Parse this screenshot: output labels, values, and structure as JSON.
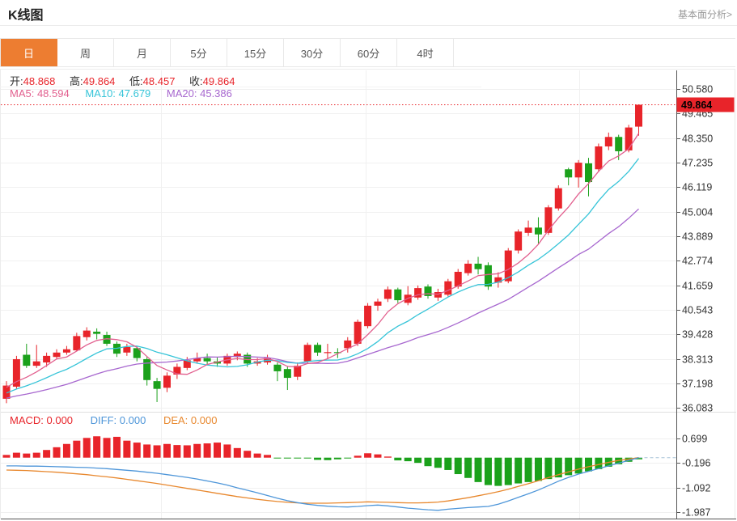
{
  "header": {
    "title": "K线图",
    "link": "基本面分析>"
  },
  "tabs": {
    "items": [
      {
        "label": "日",
        "active": true
      },
      {
        "label": "周",
        "active": false
      },
      {
        "label": "月",
        "active": false
      },
      {
        "label": "5分",
        "active": false
      },
      {
        "label": "15分",
        "active": false
      },
      {
        "label": "30分",
        "active": false
      },
      {
        "label": "60分",
        "active": false
      },
      {
        "label": "4时",
        "active": false
      }
    ]
  },
  "ohlc_bar": {
    "items": [
      {
        "label": "开:",
        "value": "48.868"
      },
      {
        "label": "高:",
        "value": "49.864"
      },
      {
        "label": "低:",
        "value": "48.457"
      },
      {
        "label": "收:",
        "value": "49.864"
      }
    ]
  },
  "ma_bar": {
    "items": [
      {
        "text": "MA5: 48.594",
        "key": "ma5"
      },
      {
        "text": "MA10: 47.679",
        "key": "ma10"
      },
      {
        "text": "MA20: 45.386",
        "key": "ma20"
      }
    ]
  },
  "macd_bar": {
    "items": [
      {
        "text": "MACD: 0.000",
        "key": "macd"
      },
      {
        "text": "DIFF: 0.000",
        "key": "diff"
      },
      {
        "text": "DEA: 0.000",
        "key": "dea"
      }
    ]
  },
  "price_tag": "49.864",
  "colors": {
    "up": "#e8242a",
    "down": "#1ba11b",
    "accent": "#ed7d31",
    "ma5": "#e25f8e",
    "ma10": "#35c4d8",
    "ma20": "#a767cf",
    "diff": "#4e96d9",
    "dea": "#e8882e",
    "grid": "#f0f0f0",
    "axis": "#555555",
    "label_text": "#333333",
    "dashed_zero": "#a8c4d8"
  },
  "chart_data": [
    {
      "type": "candlestick",
      "title": "日K with MA5/MA10/MA20",
      "legend": [
        "MA5",
        "MA10",
        "MA20"
      ],
      "current_price": 49.864,
      "y_axis_labels": [
        "50.580",
        "49.465",
        "48.350",
        "47.235",
        "46.119",
        "45.004",
        "43.889",
        "42.774",
        "41.659",
        "40.543",
        "39.428",
        "38.313",
        "37.198",
        "36.083"
      ],
      "y_axis_values": [
        50.58,
        49.465,
        48.35,
        47.235,
        46.119,
        45.004,
        43.889,
        42.774,
        41.659,
        40.543,
        39.428,
        38.313,
        37.198,
        36.083
      ],
      "ylim": [
        35.6,
        51.1
      ],
      "grid": true,
      "ma_seed_closes": [
        36.3,
        36.3,
        36.3,
        36.3,
        36.3,
        36.3,
        36.3,
        36.3,
        36.3,
        36.3,
        36.5,
        36.5,
        36.5,
        36.5,
        36.5,
        37.0,
        37.0,
        37.0,
        37.0
      ],
      "candles_ohlc": [
        [
          36.5,
          37.3,
          36.3,
          37.1
        ],
        [
          37.05,
          38.45,
          36.95,
          38.3
        ],
        [
          38.5,
          39.0,
          37.9,
          38.0
        ],
        [
          38.0,
          38.95,
          37.9,
          38.2
        ],
        [
          38.15,
          38.6,
          37.95,
          38.45
        ],
        [
          38.4,
          38.75,
          38.3,
          38.6
        ],
        [
          38.6,
          38.9,
          38.5,
          38.75
        ],
        [
          38.7,
          39.5,
          38.65,
          39.35
        ],
        [
          39.3,
          39.75,
          39.15,
          39.6
        ],
        [
          39.55,
          39.7,
          39.2,
          39.45
        ],
        [
          39.4,
          39.55,
          38.9,
          39.0
        ],
        [
          39.0,
          39.1,
          38.4,
          38.55
        ],
        [
          38.6,
          39.0,
          38.45,
          38.85
        ],
        [
          38.8,
          38.9,
          38.2,
          38.35
        ],
        [
          38.3,
          38.4,
          37.1,
          37.35
        ],
        [
          37.3,
          37.45,
          36.35,
          36.95
        ],
        [
          37.0,
          37.7,
          36.8,
          37.55
        ],
        [
          37.6,
          38.1,
          37.4,
          37.95
        ],
        [
          37.9,
          38.4,
          37.8,
          38.25
        ],
        [
          38.2,
          38.6,
          38.1,
          38.35
        ],
        [
          38.35,
          38.55,
          38.05,
          38.2
        ],
        [
          38.2,
          38.4,
          37.95,
          38.1
        ],
        [
          38.1,
          38.55,
          38.0,
          38.45
        ],
        [
          38.4,
          38.65,
          38.25,
          38.55
        ],
        [
          38.5,
          38.6,
          37.95,
          38.1
        ],
        [
          38.1,
          38.35,
          38.0,
          38.2
        ],
        [
          38.15,
          38.5,
          38.05,
          38.35
        ],
        [
          38.05,
          38.15,
          37.3,
          37.75
        ],
        [
          37.85,
          37.95,
          36.9,
          37.45
        ],
        [
          37.5,
          38.15,
          37.35,
          38.0
        ],
        [
          38.2,
          39.05,
          38.1,
          38.95
        ],
        [
          38.95,
          39.05,
          38.45,
          38.6
        ],
        [
          38.58,
          39.0,
          38.3,
          38.62
        ],
        [
          38.62,
          38.8,
          38.35,
          38.58
        ],
        [
          38.8,
          39.3,
          38.6,
          39.15
        ],
        [
          39.0,
          40.1,
          38.9,
          40.0
        ],
        [
          39.8,
          40.85,
          39.7,
          40.73
        ],
        [
          40.73,
          41.05,
          40.5,
          40.92
        ],
        [
          41.04,
          41.6,
          40.9,
          41.47
        ],
        [
          41.47,
          41.55,
          40.85,
          40.98
        ],
        [
          40.86,
          41.62,
          40.75,
          41.23
        ],
        [
          41.1,
          41.65,
          41.0,
          41.53
        ],
        [
          41.6,
          41.7,
          41.05,
          41.17
        ],
        [
          41.1,
          41.5,
          40.95,
          41.35
        ],
        [
          41.23,
          41.95,
          41.15,
          41.84
        ],
        [
          41.6,
          42.4,
          41.5,
          42.27
        ],
        [
          42.21,
          42.8,
          42.1,
          42.64
        ],
        [
          42.64,
          42.95,
          42.15,
          42.39
        ],
        [
          42.57,
          42.7,
          41.45,
          41.6
        ],
        [
          41.78,
          42.25,
          41.55,
          42.02
        ],
        [
          41.84,
          43.35,
          41.75,
          43.24
        ],
        [
          43.24,
          44.2,
          43.1,
          44.1
        ],
        [
          44.04,
          44.6,
          43.9,
          44.28
        ],
        [
          44.28,
          44.75,
          43.55,
          43.97
        ],
        [
          44.04,
          45.3,
          43.95,
          45.2
        ],
        [
          45.15,
          46.2,
          45.05,
          46.07
        ],
        [
          46.93,
          47.0,
          46.2,
          46.56
        ],
        [
          46.56,
          47.35,
          46.1,
          47.23
        ],
        [
          47.2,
          47.45,
          45.7,
          46.35
        ],
        [
          46.93,
          48.1,
          46.8,
          47.97
        ],
        [
          47.97,
          48.6,
          47.8,
          48.4
        ],
        [
          48.4,
          48.5,
          47.35,
          47.75
        ],
        [
          47.79,
          48.95,
          47.7,
          48.83
        ],
        [
          48.868,
          49.864,
          48.457,
          49.864
        ]
      ]
    },
    {
      "type": "bar",
      "title": "MACD(DIFF/DEA/histogram)",
      "y_axis_labels": [
        "0.699",
        "-0.196",
        "-1.092",
        "-1.987"
      ],
      "y_axis_values": [
        0.699,
        -0.196,
        -1.092,
        -1.987
      ],
      "ylim": [
        -2.3,
        0.95
      ],
      "grid": true,
      "hist": [
        0.1,
        0.18,
        0.15,
        0.18,
        0.28,
        0.38,
        0.5,
        0.62,
        0.72,
        0.78,
        0.72,
        0.76,
        0.62,
        0.55,
        0.48,
        0.45,
        0.5,
        0.46,
        0.45,
        0.5,
        0.52,
        0.55,
        0.48,
        0.35,
        0.25,
        0.15,
        0.1,
        -0.02,
        -0.03,
        -0.01,
        -0.01,
        -0.08,
        -0.09,
        -0.06,
        -0.02,
        0.07,
        0.16,
        0.12,
        0.04,
        -0.1,
        -0.13,
        -0.19,
        -0.31,
        -0.37,
        -0.45,
        -0.6,
        -0.74,
        -0.89,
        -1.0,
        -1.03,
        -1.0,
        -0.94,
        -0.89,
        -0.85,
        -0.78,
        -0.72,
        -0.64,
        -0.58,
        -0.5,
        -0.42,
        -0.33,
        -0.24,
        -0.15,
        -0.06
      ],
      "diff": [
        -0.3,
        -0.3,
        -0.31,
        -0.31,
        -0.32,
        -0.33,
        -0.34,
        -0.35,
        -0.36,
        -0.38,
        -0.4,
        -0.43,
        -0.46,
        -0.49,
        -0.53,
        -0.57,
        -0.62,
        -0.67,
        -0.72,
        -0.78,
        -0.85,
        -0.92,
        -1.0,
        -1.1,
        -1.19,
        -1.28,
        -1.38,
        -1.48,
        -1.57,
        -1.64,
        -1.7,
        -1.74,
        -1.77,
        -1.79,
        -1.8,
        -1.78,
        -1.75,
        -1.73,
        -1.76,
        -1.8,
        -1.84,
        -1.87,
        -1.9,
        -1.92,
        -1.88,
        -1.85,
        -1.82,
        -1.8,
        -1.78,
        -1.7,
        -1.58,
        -1.45,
        -1.32,
        -1.18,
        -1.02,
        -0.86,
        -0.72,
        -0.6,
        -0.5,
        -0.4,
        -0.3,
        -0.2,
        -0.1,
        0.0
      ],
      "dea": [
        -0.45,
        -0.46,
        -0.47,
        -0.49,
        -0.51,
        -0.53,
        -0.56,
        -0.59,
        -0.62,
        -0.66,
        -0.7,
        -0.74,
        -0.79,
        -0.84,
        -0.89,
        -0.94,
        -1.0,
        -1.06,
        -1.12,
        -1.18,
        -1.24,
        -1.3,
        -1.36,
        -1.42,
        -1.47,
        -1.52,
        -1.56,
        -1.6,
        -1.63,
        -1.65,
        -1.66,
        -1.66,
        -1.66,
        -1.65,
        -1.64,
        -1.63,
        -1.61,
        -1.62,
        -1.63,
        -1.64,
        -1.65,
        -1.65,
        -1.64,
        -1.62,
        -1.58,
        -1.52,
        -1.46,
        -1.39,
        -1.32,
        -1.24,
        -1.15,
        -1.05,
        -0.95,
        -0.84,
        -0.73,
        -0.62,
        -0.52,
        -0.42,
        -0.33,
        -0.25,
        -0.17,
        -0.1,
        -0.05,
        0.0
      ]
    }
  ]
}
